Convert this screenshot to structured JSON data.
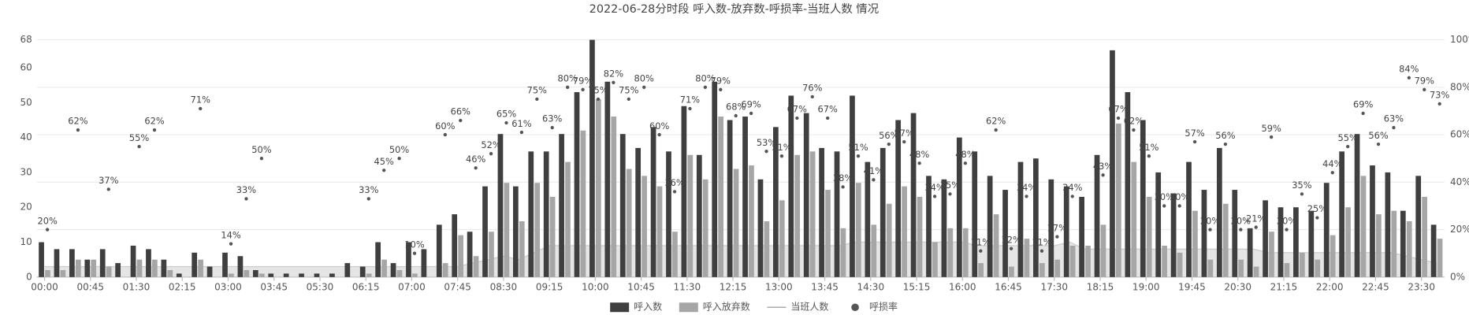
{
  "chart_data": {
    "type": "bar",
    "title": "2022-06-28分时段 呼入数-放弃数-呼损率-当班人数 情况",
    "categories": [
      "00:00",
      null,
      null,
      "00:45",
      null,
      null,
      "01:30",
      null,
      null,
      "02:15",
      null,
      null,
      "03:00",
      null,
      null,
      "03:45",
      null,
      null,
      "05:30",
      null,
      null,
      "06:15",
      null,
      null,
      "07:00",
      null,
      null,
      "07:45",
      null,
      null,
      "08:30",
      null,
      null,
      "09:15",
      null,
      null,
      "10:00",
      null,
      null,
      "10:45",
      null,
      null,
      "11:30",
      null,
      null,
      "12:15",
      null,
      null,
      "13:00",
      null,
      null,
      "13:45",
      null,
      null,
      "14:30",
      null,
      null,
      "15:15",
      null,
      null,
      "16:00",
      null,
      null,
      "16:45",
      null,
      null,
      "17:30",
      null,
      null,
      "18:15",
      null,
      null,
      "19:00",
      null,
      null,
      "19:45",
      null,
      null,
      "20:30",
      null,
      null,
      "21:15",
      null,
      null,
      "22:00",
      null,
      null,
      "22:45",
      null,
      null,
      "23:30",
      null
    ],
    "series": [
      {
        "name": "呼入数",
        "type": "bar",
        "color": "#3f3f3f",
        "values": [
          10,
          8,
          8,
          5,
          8,
          4,
          9,
          8,
          5,
          1,
          7,
          3,
          7,
          6,
          2,
          1,
          1,
          1,
          1,
          1,
          4,
          3,
          10,
          4,
          10,
          8,
          15,
          18,
          13,
          26,
          41,
          26,
          36,
          36,
          41,
          53,
          68,
          56,
          41,
          37,
          43,
          36,
          49,
          35,
          56,
          45,
          46,
          28,
          43,
          52,
          47,
          37,
          36,
          52,
          33,
          37,
          45,
          47,
          29,
          28,
          40,
          36,
          29,
          25,
          33,
          34,
          28,
          26,
          23,
          35,
          65,
          53,
          45,
          30,
          24,
          33,
          25,
          37,
          25,
          14,
          22,
          20,
          20,
          19,
          27,
          36,
          41,
          32,
          30,
          19,
          29,
          15
        ]
      },
      {
        "name": "呼入放弃数",
        "type": "bar",
        "color": "#a6a6a6",
        "values": [
          2,
          2,
          5,
          5,
          3,
          0,
          5,
          5,
          2,
          0,
          5,
          0,
          1,
          2,
          1,
          0,
          0,
          0,
          0,
          0,
          0,
          1,
          5,
          2,
          1,
          0,
          4,
          12,
          6,
          13,
          27,
          16,
          27,
          23,
          33,
          42,
          51,
          46,
          31,
          29,
          26,
          13,
          35,
          28,
          46,
          31,
          32,
          16,
          22,
          35,
          36,
          25,
          14,
          27,
          15,
          21,
          26,
          23,
          10,
          14,
          14,
          4,
          18,
          3,
          11,
          4,
          5,
          9,
          9,
          15,
          44,
          33,
          23,
          9,
          7,
          19,
          5,
          21,
          5,
          3,
          13,
          4,
          7,
          5,
          12,
          20,
          29,
          18,
          19,
          16,
          23,
          11
        ]
      },
      {
        "name": "当班人数",
        "type": "line",
        "color": "#cfcfcf",
        "values": [
          3,
          3,
          3,
          3,
          3,
          3,
          3,
          3,
          3,
          3,
          3,
          3,
          3,
          3,
          3,
          3,
          3,
          3,
          3,
          3,
          3,
          3,
          3,
          3,
          3,
          3,
          3,
          3,
          4,
          5,
          6,
          5,
          7,
          9,
          9,
          9,
          9,
          9,
          9,
          9,
          9,
          9,
          9,
          9,
          9,
          9,
          9,
          9,
          9,
          9,
          9,
          9,
          9,
          10,
          10,
          10,
          10,
          10,
          10,
          10,
          10,
          9,
          9,
          9,
          9,
          9,
          9,
          10,
          8,
          8,
          8,
          8,
          8,
          8,
          8,
          8,
          8,
          8,
          8,
          8,
          7,
          7,
          7,
          7,
          7,
          7,
          7,
          7,
          7,
          6,
          5,
          4
        ]
      },
      {
        "name": "呼损率",
        "type": "scatter",
        "axis": "y2",
        "color": "#555555",
        "values": [
          20,
          null,
          62,
          null,
          37,
          null,
          55,
          62,
          null,
          null,
          71,
          null,
          14,
          33,
          50,
          null,
          null,
          null,
          null,
          null,
          null,
          33,
          45,
          50,
          10,
          null,
          60,
          66,
          46,
          52,
          65,
          61,
          75,
          63,
          80,
          79,
          75,
          82,
          75,
          80,
          60,
          36,
          71,
          80,
          79,
          68,
          69,
          53,
          51,
          67,
          76,
          67,
          38,
          51,
          41,
          56,
          57,
          48,
          34,
          35,
          48,
          11,
          62,
          12,
          34,
          11,
          17,
          34,
          null,
          43,
          67,
          62,
          51,
          30,
          30,
          57,
          20,
          56,
          20,
          21,
          59,
          20,
          35,
          25,
          44,
          55,
          69,
          56,
          63,
          84,
          79,
          73
        ],
        "value_labels": [
          "20%",
          null,
          "62%",
          null,
          "37%",
          null,
          "55%",
          "62%",
          null,
          null,
          "71%",
          null,
          "14%",
          "33%",
          "50%",
          null,
          null,
          null,
          null,
          null,
          null,
          "33%",
          "45%",
          "50%",
          "10%",
          null,
          "60%",
          "66%",
          "46%",
          "52%",
          "65%",
          "61%",
          "75%",
          "63%",
          "80%",
          "79%",
          "75%",
          "82%",
          "75%",
          "80%",
          "60%",
          "36%",
          "71%",
          "80%",
          "79%",
          "68%",
          "69%",
          "53%",
          "51%",
          "67%",
          "76%",
          "67%",
          "38%",
          "51%",
          "41%",
          "56%",
          "57%",
          "48%",
          "34%",
          "35%",
          "48%",
          "11%",
          "62%",
          "12%",
          "34%",
          "11%",
          "17%",
          "34%",
          null,
          "43%",
          "67%",
          "62%",
          "51%",
          "30%",
          "30%",
          "57%",
          "20%",
          "56%",
          "20%",
          "21%",
          "59%",
          "20%",
          "35%",
          "25%",
          "44%",
          "55%",
          "69%",
          "56%",
          "63%",
          "84%",
          "79%",
          "73%"
        ]
      }
    ],
    "ylim": [
      0,
      68
    ],
    "yticks": [
      0,
      10,
      20,
      30,
      40,
      50,
      60,
      68
    ],
    "y2lim": [
      0,
      100
    ],
    "y2ticks": [
      {
        "value": 0,
        "label": "0%"
      },
      {
        "value": 20,
        "label": "20%"
      },
      {
        "value": 40,
        "label": "40%"
      },
      {
        "value": 60,
        "label": "60%"
      },
      {
        "value": 80,
        "label": "80%"
      },
      {
        "value": 100,
        "label": "100%"
      }
    ],
    "grid": true,
    "legend": "bottom"
  }
}
